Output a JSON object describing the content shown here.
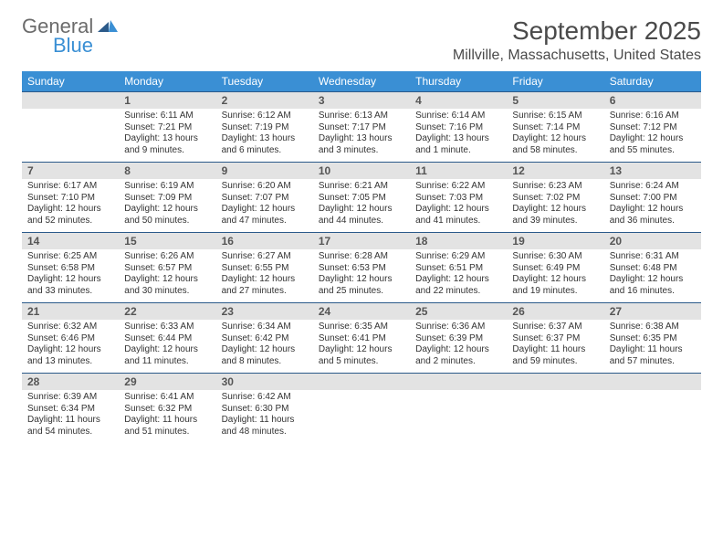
{
  "logo": {
    "general": "General",
    "blue": "Blue"
  },
  "header": {
    "month_title": "September 2025",
    "location": "Millville, Massachusetts, United States"
  },
  "calendar": {
    "header_bg": "#3a8fd4",
    "header_text_color": "#ffffff",
    "daynum_bg": "#e3e3e3",
    "daynum_border": "#2b5a8a",
    "dows": [
      "Sunday",
      "Monday",
      "Tuesday",
      "Wednesday",
      "Thursday",
      "Friday",
      "Saturday"
    ],
    "weeks": [
      [
        {
          "num": "",
          "sunrise": "",
          "sunset": "",
          "daylight": ""
        },
        {
          "num": "1",
          "sunrise": "Sunrise: 6:11 AM",
          "sunset": "Sunset: 7:21 PM",
          "daylight": "Daylight: 13 hours and 9 minutes."
        },
        {
          "num": "2",
          "sunrise": "Sunrise: 6:12 AM",
          "sunset": "Sunset: 7:19 PM",
          "daylight": "Daylight: 13 hours and 6 minutes."
        },
        {
          "num": "3",
          "sunrise": "Sunrise: 6:13 AM",
          "sunset": "Sunset: 7:17 PM",
          "daylight": "Daylight: 13 hours and 3 minutes."
        },
        {
          "num": "4",
          "sunrise": "Sunrise: 6:14 AM",
          "sunset": "Sunset: 7:16 PM",
          "daylight": "Daylight: 13 hours and 1 minute."
        },
        {
          "num": "5",
          "sunrise": "Sunrise: 6:15 AM",
          "sunset": "Sunset: 7:14 PM",
          "daylight": "Daylight: 12 hours and 58 minutes."
        },
        {
          "num": "6",
          "sunrise": "Sunrise: 6:16 AM",
          "sunset": "Sunset: 7:12 PM",
          "daylight": "Daylight: 12 hours and 55 minutes."
        }
      ],
      [
        {
          "num": "7",
          "sunrise": "Sunrise: 6:17 AM",
          "sunset": "Sunset: 7:10 PM",
          "daylight": "Daylight: 12 hours and 52 minutes."
        },
        {
          "num": "8",
          "sunrise": "Sunrise: 6:19 AM",
          "sunset": "Sunset: 7:09 PM",
          "daylight": "Daylight: 12 hours and 50 minutes."
        },
        {
          "num": "9",
          "sunrise": "Sunrise: 6:20 AM",
          "sunset": "Sunset: 7:07 PM",
          "daylight": "Daylight: 12 hours and 47 minutes."
        },
        {
          "num": "10",
          "sunrise": "Sunrise: 6:21 AM",
          "sunset": "Sunset: 7:05 PM",
          "daylight": "Daylight: 12 hours and 44 minutes."
        },
        {
          "num": "11",
          "sunrise": "Sunrise: 6:22 AM",
          "sunset": "Sunset: 7:03 PM",
          "daylight": "Daylight: 12 hours and 41 minutes."
        },
        {
          "num": "12",
          "sunrise": "Sunrise: 6:23 AM",
          "sunset": "Sunset: 7:02 PM",
          "daylight": "Daylight: 12 hours and 39 minutes."
        },
        {
          "num": "13",
          "sunrise": "Sunrise: 6:24 AM",
          "sunset": "Sunset: 7:00 PM",
          "daylight": "Daylight: 12 hours and 36 minutes."
        }
      ],
      [
        {
          "num": "14",
          "sunrise": "Sunrise: 6:25 AM",
          "sunset": "Sunset: 6:58 PM",
          "daylight": "Daylight: 12 hours and 33 minutes."
        },
        {
          "num": "15",
          "sunrise": "Sunrise: 6:26 AM",
          "sunset": "Sunset: 6:57 PM",
          "daylight": "Daylight: 12 hours and 30 minutes."
        },
        {
          "num": "16",
          "sunrise": "Sunrise: 6:27 AM",
          "sunset": "Sunset: 6:55 PM",
          "daylight": "Daylight: 12 hours and 27 minutes."
        },
        {
          "num": "17",
          "sunrise": "Sunrise: 6:28 AM",
          "sunset": "Sunset: 6:53 PM",
          "daylight": "Daylight: 12 hours and 25 minutes."
        },
        {
          "num": "18",
          "sunrise": "Sunrise: 6:29 AM",
          "sunset": "Sunset: 6:51 PM",
          "daylight": "Daylight: 12 hours and 22 minutes."
        },
        {
          "num": "19",
          "sunrise": "Sunrise: 6:30 AM",
          "sunset": "Sunset: 6:49 PM",
          "daylight": "Daylight: 12 hours and 19 minutes."
        },
        {
          "num": "20",
          "sunrise": "Sunrise: 6:31 AM",
          "sunset": "Sunset: 6:48 PM",
          "daylight": "Daylight: 12 hours and 16 minutes."
        }
      ],
      [
        {
          "num": "21",
          "sunrise": "Sunrise: 6:32 AM",
          "sunset": "Sunset: 6:46 PM",
          "daylight": "Daylight: 12 hours and 13 minutes."
        },
        {
          "num": "22",
          "sunrise": "Sunrise: 6:33 AM",
          "sunset": "Sunset: 6:44 PM",
          "daylight": "Daylight: 12 hours and 11 minutes."
        },
        {
          "num": "23",
          "sunrise": "Sunrise: 6:34 AM",
          "sunset": "Sunset: 6:42 PM",
          "daylight": "Daylight: 12 hours and 8 minutes."
        },
        {
          "num": "24",
          "sunrise": "Sunrise: 6:35 AM",
          "sunset": "Sunset: 6:41 PM",
          "daylight": "Daylight: 12 hours and 5 minutes."
        },
        {
          "num": "25",
          "sunrise": "Sunrise: 6:36 AM",
          "sunset": "Sunset: 6:39 PM",
          "daylight": "Daylight: 12 hours and 2 minutes."
        },
        {
          "num": "26",
          "sunrise": "Sunrise: 6:37 AM",
          "sunset": "Sunset: 6:37 PM",
          "daylight": "Daylight: 11 hours and 59 minutes."
        },
        {
          "num": "27",
          "sunrise": "Sunrise: 6:38 AM",
          "sunset": "Sunset: 6:35 PM",
          "daylight": "Daylight: 11 hours and 57 minutes."
        }
      ],
      [
        {
          "num": "28",
          "sunrise": "Sunrise: 6:39 AM",
          "sunset": "Sunset: 6:34 PM",
          "daylight": "Daylight: 11 hours and 54 minutes."
        },
        {
          "num": "29",
          "sunrise": "Sunrise: 6:41 AM",
          "sunset": "Sunset: 6:32 PM",
          "daylight": "Daylight: 11 hours and 51 minutes."
        },
        {
          "num": "30",
          "sunrise": "Sunrise: 6:42 AM",
          "sunset": "Sunset: 6:30 PM",
          "daylight": "Daylight: 11 hours and 48 minutes."
        },
        {
          "num": "",
          "sunrise": "",
          "sunset": "",
          "daylight": ""
        },
        {
          "num": "",
          "sunrise": "",
          "sunset": "",
          "daylight": ""
        },
        {
          "num": "",
          "sunrise": "",
          "sunset": "",
          "daylight": ""
        },
        {
          "num": "",
          "sunrise": "",
          "sunset": "",
          "daylight": ""
        }
      ]
    ]
  }
}
